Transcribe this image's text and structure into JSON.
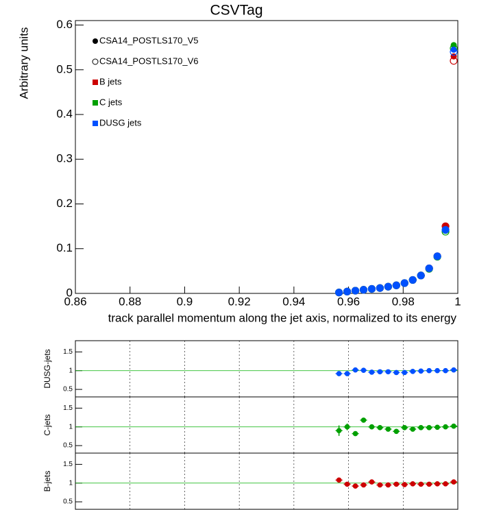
{
  "chart_data": [
    {
      "type": "scatter",
      "title": "CSVTag",
      "y_label": "Arbitrary units",
      "x_label": "track parallel momentum along the jet axis, normalized to its energy",
      "legend_markers": [
        "CSA14_POSTLS170_V5",
        "CSA14_POSTLS170_V6"
      ],
      "x": [
        0.9565,
        0.9595,
        0.9625,
        0.9655,
        0.9685,
        0.9715,
        0.9745,
        0.9775,
        0.9805,
        0.9835,
        0.9865,
        0.9895,
        0.9925,
        0.9955,
        0.9985
      ],
      "series": [
        {
          "name": "B jets",
          "color": "#cc0000",
          "values": [
            0.002,
            0.004,
            0.006,
            0.008,
            0.01,
            0.012,
            0.015,
            0.018,
            0.023,
            0.03,
            0.04,
            0.056,
            0.083,
            0.15,
            0.53
          ],
          "values_v6": [
            0.002,
            0.004,
            0.006,
            0.008,
            0.01,
            0.012,
            0.015,
            0.018,
            0.023,
            0.03,
            0.04,
            0.056,
            0.083,
            0.15,
            0.52
          ]
        },
        {
          "name": "C jets",
          "color": "#00a000",
          "values": [
            0.002,
            0.004,
            0.006,
            0.008,
            0.01,
            0.012,
            0.015,
            0.018,
            0.023,
            0.03,
            0.04,
            0.055,
            0.082,
            0.14,
            0.555
          ],
          "values_v6": [
            0.002,
            0.004,
            0.006,
            0.008,
            0.01,
            0.012,
            0.015,
            0.018,
            0.023,
            0.03,
            0.04,
            0.055,
            0.082,
            0.138,
            0.548
          ]
        },
        {
          "name": "DUSG jets",
          "color": "#0050ff",
          "values": [
            0.002,
            0.004,
            0.006,
            0.008,
            0.01,
            0.012,
            0.015,
            0.018,
            0.023,
            0.03,
            0.04,
            0.056,
            0.083,
            0.142,
            0.545
          ],
          "values_v6": [
            0.002,
            0.004,
            0.006,
            0.008,
            0.01,
            0.012,
            0.015,
            0.018,
            0.023,
            0.03,
            0.04,
            0.056,
            0.083,
            0.142,
            0.54
          ]
        }
      ],
      "xlim": [
        0.86,
        1
      ],
      "ylim": [
        0,
        0.61
      ],
      "xticks": [
        0.86,
        0.88,
        0.9,
        0.92,
        0.94,
        0.96,
        0.98,
        1
      ],
      "yticks": [
        0,
        0.1,
        0.2,
        0.3,
        0.4,
        0.5,
        0.6
      ],
      "grid": false
    },
    {
      "type": "ratio",
      "y_label": "DUSG-jets",
      "color": "#0050ff",
      "reference": 1,
      "x": [
        0.9565,
        0.9595,
        0.9625,
        0.9655,
        0.9685,
        0.9715,
        0.9745,
        0.9775,
        0.9805,
        0.9835,
        0.9865,
        0.9895,
        0.9925,
        0.9955,
        0.9985
      ],
      "values": [
        0.92,
        0.92,
        1.02,
        1.01,
        0.96,
        0.97,
        0.97,
        0.95,
        0.95,
        0.98,
        0.99,
        1.0,
        1.0,
        1.0,
        1.02
      ],
      "errors": [
        0.04,
        0.03,
        0.03,
        0.02,
        0.02,
        0.02,
        0.02,
        0.02,
        0.02,
        0.02,
        0.02,
        0.02,
        0.02,
        0.02,
        0.02
      ],
      "xlim": [
        0.86,
        1
      ],
      "ylim": [
        0.3,
        1.8
      ],
      "xticks": [
        0.86,
        0.88,
        0.9,
        0.92,
        0.94,
        0.96,
        0.98,
        1
      ],
      "yticks": [
        0.5,
        1,
        1.5
      ],
      "grid": true
    },
    {
      "type": "ratio",
      "y_label": "C-jets",
      "color": "#00a000",
      "reference": 1,
      "x": [
        0.9565,
        0.9595,
        0.9625,
        0.9655,
        0.9685,
        0.9715,
        0.9745,
        0.9775,
        0.9805,
        0.9835,
        0.9865,
        0.9895,
        0.9925,
        0.9955,
        0.9985
      ],
      "values": [
        0.9,
        1.0,
        0.82,
        1.18,
        1.0,
        0.98,
        0.94,
        0.88,
        0.98,
        0.94,
        0.98,
        0.98,
        0.99,
        1.0,
        1.02
      ],
      "errors": [
        0.14,
        0.09,
        0.06,
        0.06,
        0.05,
        0.04,
        0.04,
        0.04,
        0.03,
        0.03,
        0.03,
        0.03,
        0.02,
        0.02,
        0.02
      ],
      "xlim": [
        0.86,
        1
      ],
      "ylim": [
        0.3,
        1.8
      ],
      "xticks": [
        0.86,
        0.88,
        0.9,
        0.92,
        0.94,
        0.96,
        0.98,
        1
      ],
      "yticks": [
        0.5,
        1,
        1.5
      ],
      "grid": true
    },
    {
      "type": "ratio",
      "y_label": "B-jets",
      "color": "#cc0000",
      "reference": 1,
      "x": [
        0.9565,
        0.9595,
        0.9625,
        0.9655,
        0.9685,
        0.9715,
        0.9745,
        0.9775,
        0.9805,
        0.9835,
        0.9865,
        0.9895,
        0.9925,
        0.9955,
        0.9985
      ],
      "values": [
        1.08,
        0.97,
        0.92,
        0.95,
        1.03,
        0.95,
        0.95,
        0.97,
        0.96,
        0.98,
        0.97,
        0.97,
        0.98,
        0.98,
        1.03
      ],
      "errors": [
        0.06,
        0.04,
        0.04,
        0.03,
        0.03,
        0.03,
        0.02,
        0.02,
        0.02,
        0.02,
        0.02,
        0.02,
        0.02,
        0.02,
        0.02
      ],
      "xlim": [
        0.86,
        1
      ],
      "ylim": [
        0.3,
        1.8
      ],
      "xticks": [
        0.86,
        0.88,
        0.9,
        0.92,
        0.94,
        0.96,
        0.98,
        1
      ],
      "yticks": [
        0.5,
        1,
        1.5
      ],
      "grid": true
    }
  ]
}
